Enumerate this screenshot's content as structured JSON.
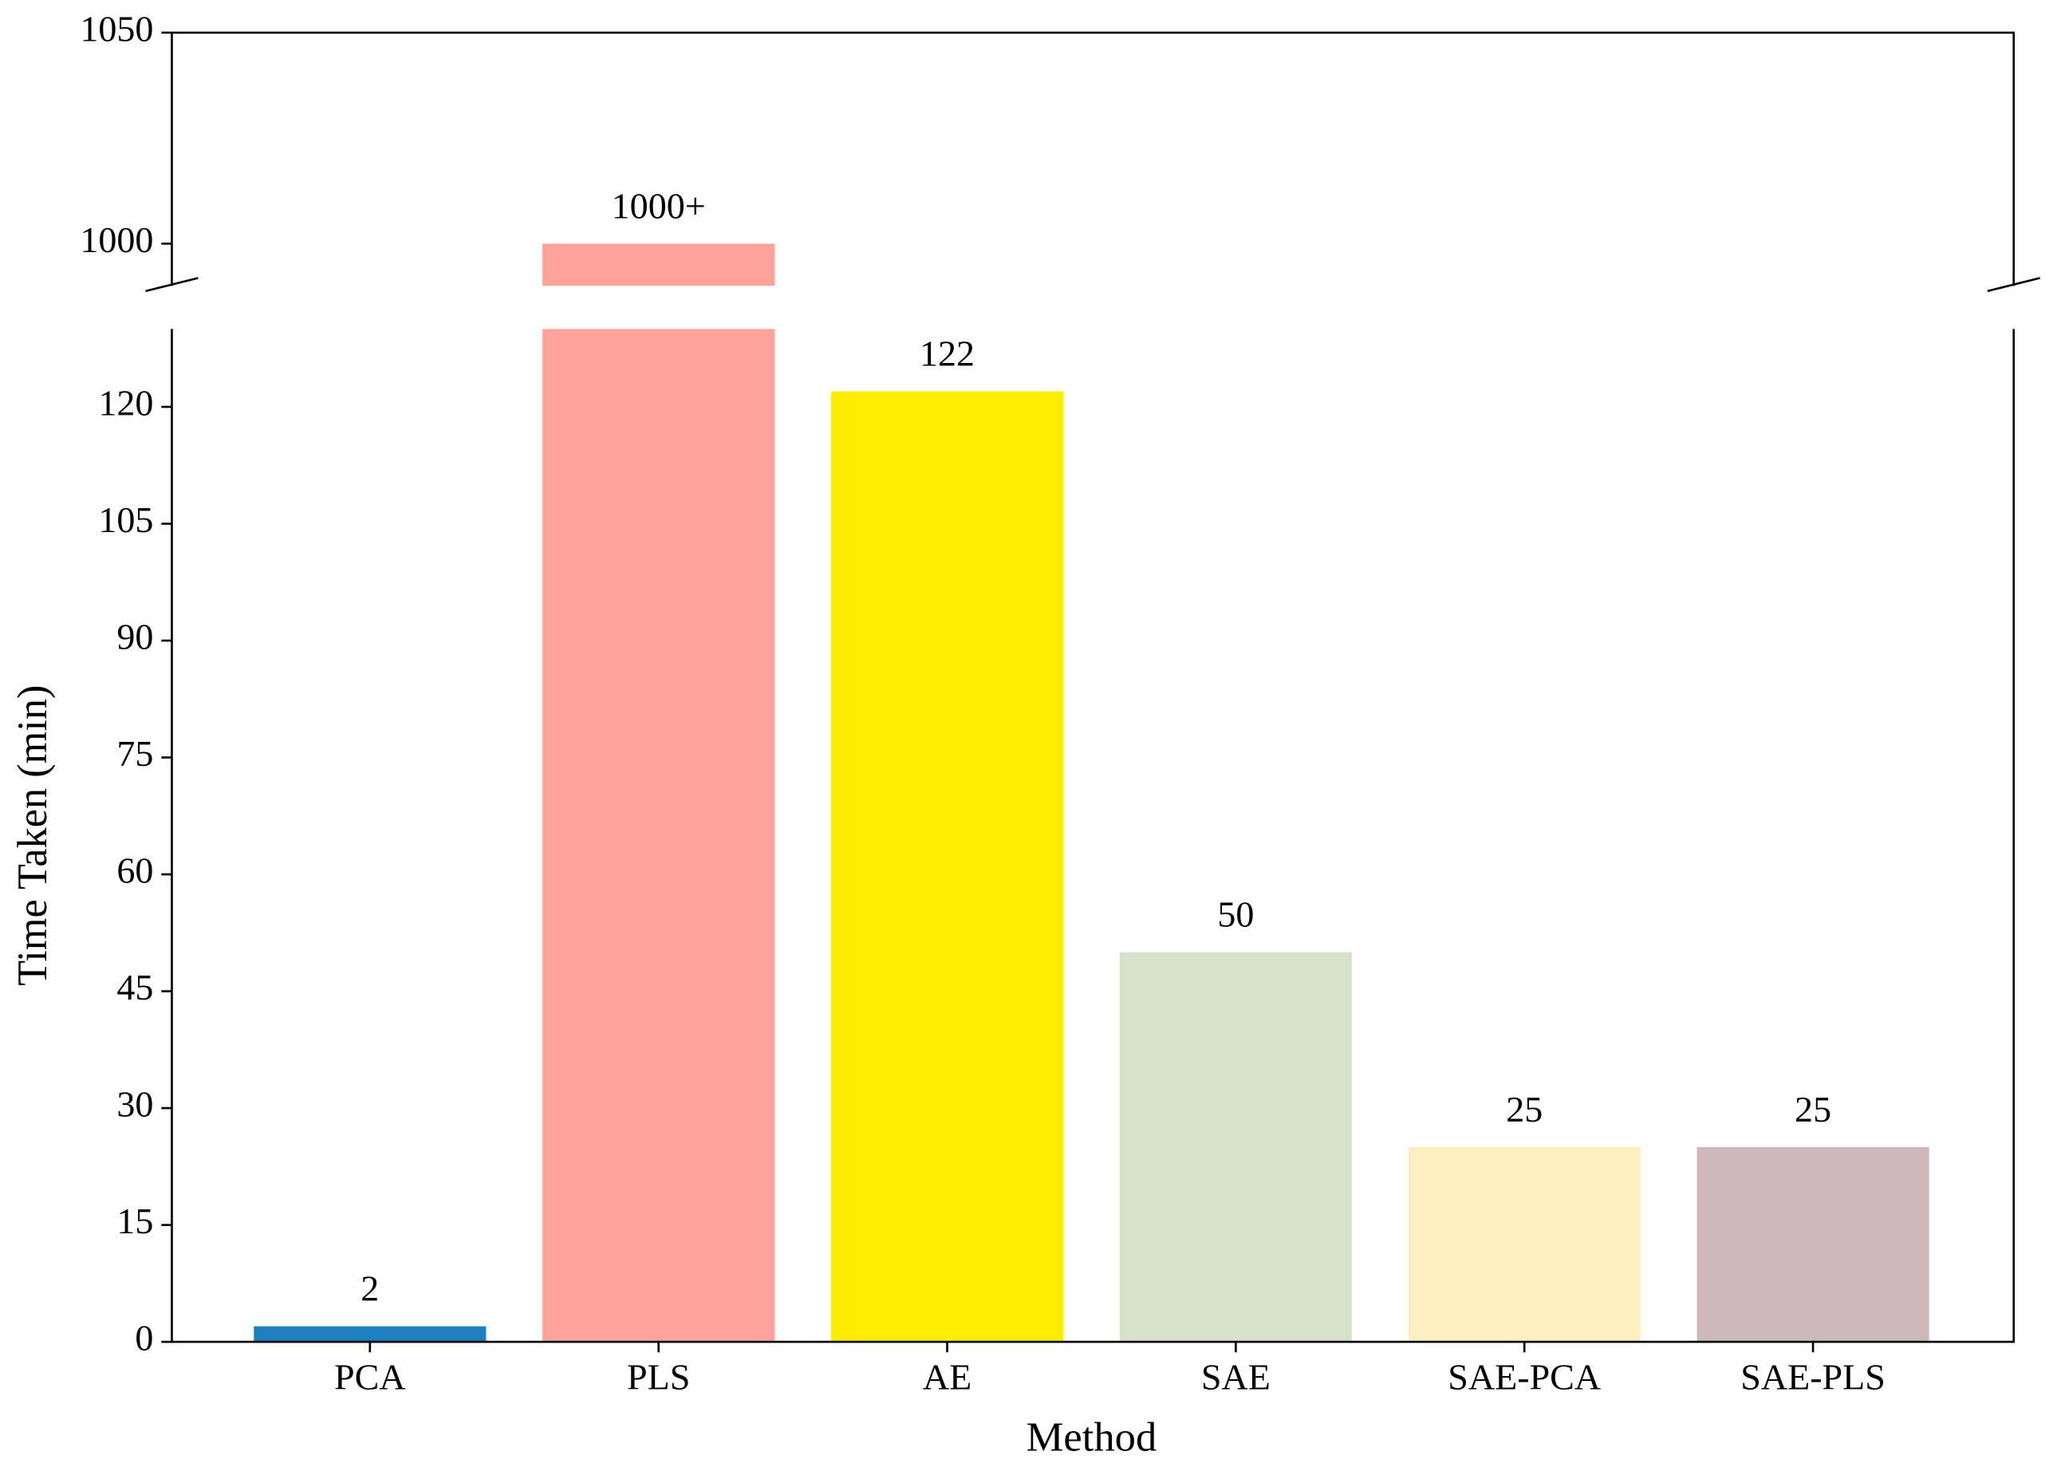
{
  "chart_data": {
    "type": "bar",
    "broken_y_axis": true,
    "xlabel": "Method",
    "ylabel": "Time Taken (min)",
    "categories": [
      "PCA",
      "PLS",
      "AE",
      "SAE",
      "SAE-PCA",
      "SAE-PLS"
    ],
    "values": [
      2,
      1000,
      122,
      50,
      25,
      25
    ],
    "value_labels": [
      "2",
      "1000+",
      "122",
      "50",
      "25",
      "25"
    ],
    "colors": [
      "#1f7fc0",
      "#ffa39a",
      "#ffed00",
      "#d5e1c8",
      "#ffefc0",
      "#cdb8bb"
    ],
    "ylim": [
      0,
      130
    ],
    "yticks": [
      0,
      15,
      30,
      45,
      60,
      75,
      90,
      105,
      120
    ],
    "upper_ylim": [
      990,
      1050
    ],
    "upper_yticks": [
      1000,
      1050
    ]
  }
}
